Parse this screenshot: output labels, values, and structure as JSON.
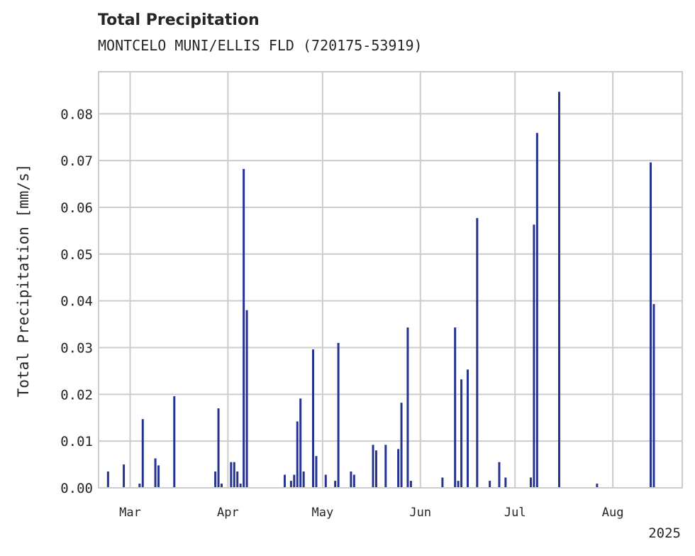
{
  "chart_data": {
    "type": "bar",
    "title": "Total Precipitation",
    "subtitle": "MONTCELO MUNI/ELLIS FLD (720175-53919)",
    "ylabel": "Total Precipitation [mm/s]",
    "xlabel": "",
    "year_label": "2025",
    "ylim": [
      0,
      0.089
    ],
    "yticks": [
      "0.00",
      "0.01",
      "0.02",
      "0.03",
      "0.04",
      "0.05",
      "0.06",
      "0.07",
      "0.08"
    ],
    "xlim": [
      "2025-02-19",
      "2025-08-23"
    ],
    "xticks": [
      {
        "date": "2025-03-01",
        "label": "Mar"
      },
      {
        "date": "2025-04-01",
        "label": "Apr"
      },
      {
        "date": "2025-05-01",
        "label": "May"
      },
      {
        "date": "2025-06-01",
        "label": "Jun"
      },
      {
        "date": "2025-07-01",
        "label": "Jul"
      },
      {
        "date": "2025-08-01",
        "label": "Aug"
      }
    ],
    "grid": true,
    "bar_color": "#26348f",
    "series": [
      {
        "x": [
          "2025-02-22",
          "2025-02-27",
          "2025-03-04",
          "2025-03-05",
          "2025-03-09",
          "2025-03-10",
          "2025-03-15",
          "2025-03-28",
          "2025-03-29",
          "2025-03-30",
          "2025-04-02",
          "2025-04-03",
          "2025-04-04",
          "2025-04-05",
          "2025-04-06",
          "2025-04-07",
          "2025-04-19",
          "2025-04-21",
          "2025-04-22",
          "2025-04-23",
          "2025-04-24",
          "2025-04-25",
          "2025-04-28",
          "2025-04-29",
          "2025-05-02",
          "2025-05-05",
          "2025-05-06",
          "2025-05-10",
          "2025-05-11",
          "2025-05-17",
          "2025-05-18",
          "2025-05-21",
          "2025-05-25",
          "2025-05-26",
          "2025-05-28",
          "2025-05-29",
          "2025-06-08",
          "2025-06-12",
          "2025-06-13",
          "2025-06-14",
          "2025-06-16",
          "2025-06-19",
          "2025-06-23",
          "2025-06-26",
          "2025-06-28",
          "2025-07-06",
          "2025-07-07",
          "2025-07-08",
          "2025-07-15",
          "2025-07-27",
          "2025-08-13",
          "2025-08-14"
        ],
        "values": [
          0.0035,
          0.005,
          0.0009,
          0.0147,
          0.0063,
          0.0048,
          0.0196,
          0.0035,
          0.017,
          0.0009,
          0.0055,
          0.0055,
          0.0035,
          0.0009,
          0.0682,
          0.038,
          0.0028,
          0.0015,
          0.0028,
          0.0142,
          0.0191,
          0.0035,
          0.0296,
          0.0068,
          0.0028,
          0.0015,
          0.031,
          0.0035,
          0.0028,
          0.0092,
          0.008,
          0.0092,
          0.0083,
          0.0182,
          0.0343,
          0.0015,
          0.0022,
          0.0343,
          0.0015,
          0.0232,
          0.0253,
          0.0577,
          0.0015,
          0.0055,
          0.0022,
          0.0022,
          0.0563,
          0.0759,
          0.0847,
          0.0009,
          0.0696,
          0.0393
        ]
      }
    ]
  }
}
